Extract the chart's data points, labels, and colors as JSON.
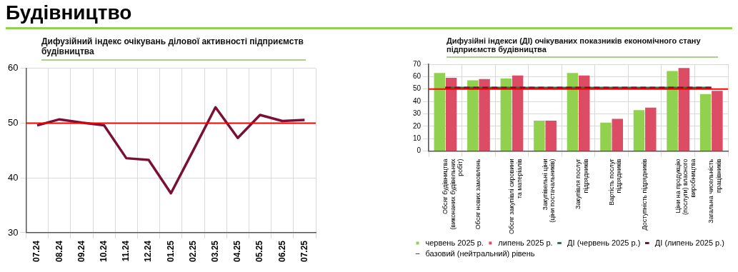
{
  "chart_data": [
    {
      "type": "other",
      "title": "Будівництво"
    },
    {
      "type": "line",
      "title": "Дифузійний індекс очікувань ділової активності підприємств будівництва",
      "categories": [
        "07.24",
        "08.24",
        "09.24",
        "10.24",
        "11.24",
        "12.24",
        "01.25",
        "02.25",
        "03.25",
        "04.25",
        "05.25",
        "06.25",
        "07.25"
      ],
      "series": [
        {
          "color": "#7b1036",
          "values": [
            49.6,
            50.7,
            50.1,
            49.6,
            43.6,
            43.3,
            37.2,
            45.0,
            52.9,
            47.3,
            51.5,
            50.4,
            50.6
          ]
        }
      ],
      "ylim": [
        30,
        60
      ],
      "yticks": [
        30,
        40,
        50,
        60
      ],
      "grid": true,
      "legend": false,
      "marker": "none",
      "line_style": "solid",
      "ref_lines": [
        {
          "axis": "y",
          "value": 50,
          "color": "#ff0000"
        }
      ]
    },
    {
      "type": "bar",
      "title": "Дифузійні індекси (ДІ) очікуваних показників економічного стану підприємств будівництва",
      "categories": [
        "Обсяг будівництва\n(виконаних будівельних\nробіт)",
        "Обсяг нових замовлень",
        "Обсяг закупівлі сировини\nта матеріалів",
        "Закупівельні ціни\n(ціни постачальників)",
        "Закупівля послуг\nпідрядників",
        "Вартість послуг\nпідрядників",
        "Доступність підрядників",
        "Ціни на продукцію\n(послуги) власного\nвиробництва",
        "Загальна чисельність\nпрацівників"
      ],
      "series": [
        {
          "name": "червень 2025 р.",
          "color": "#92d050",
          "values": [
            63,
            57,
            58.5,
            24.5,
            63,
            23,
            33,
            64.5,
            46
          ]
        },
        {
          "name": "липень 2025 р.",
          "color": "#dc4c64",
          "values": [
            59,
            58,
            61,
            24.5,
            61,
            26,
            35,
            67,
            48.5
          ]
        },
        {
          "name": "ДІ (червень 2025 р.)",
          "type": "line",
          "color": "#1e7b3c",
          "line_style": "solid",
          "values": [
            51,
            51,
            51,
            51,
            51,
            51,
            51,
            51,
            51
          ]
        },
        {
          "name": "ДІ (липень 2025 р.)",
          "type": "line",
          "color": "#7b1036",
          "line_style": "dashed",
          "values": [
            51,
            51,
            51,
            51,
            51,
            51,
            51,
            51,
            51
          ]
        }
      ],
      "ylim": [
        0,
        70
      ],
      "yticks": [
        0,
        10,
        20,
        30,
        40,
        50,
        60,
        70
      ],
      "grid": true,
      "legend": "bottom",
      "marker": "none",
      "ref_lines": [
        {
          "axis": "y",
          "value": 50,
          "label": "базовий (нейтральний) рівень",
          "color": "#ff0000"
        }
      ]
    }
  ]
}
